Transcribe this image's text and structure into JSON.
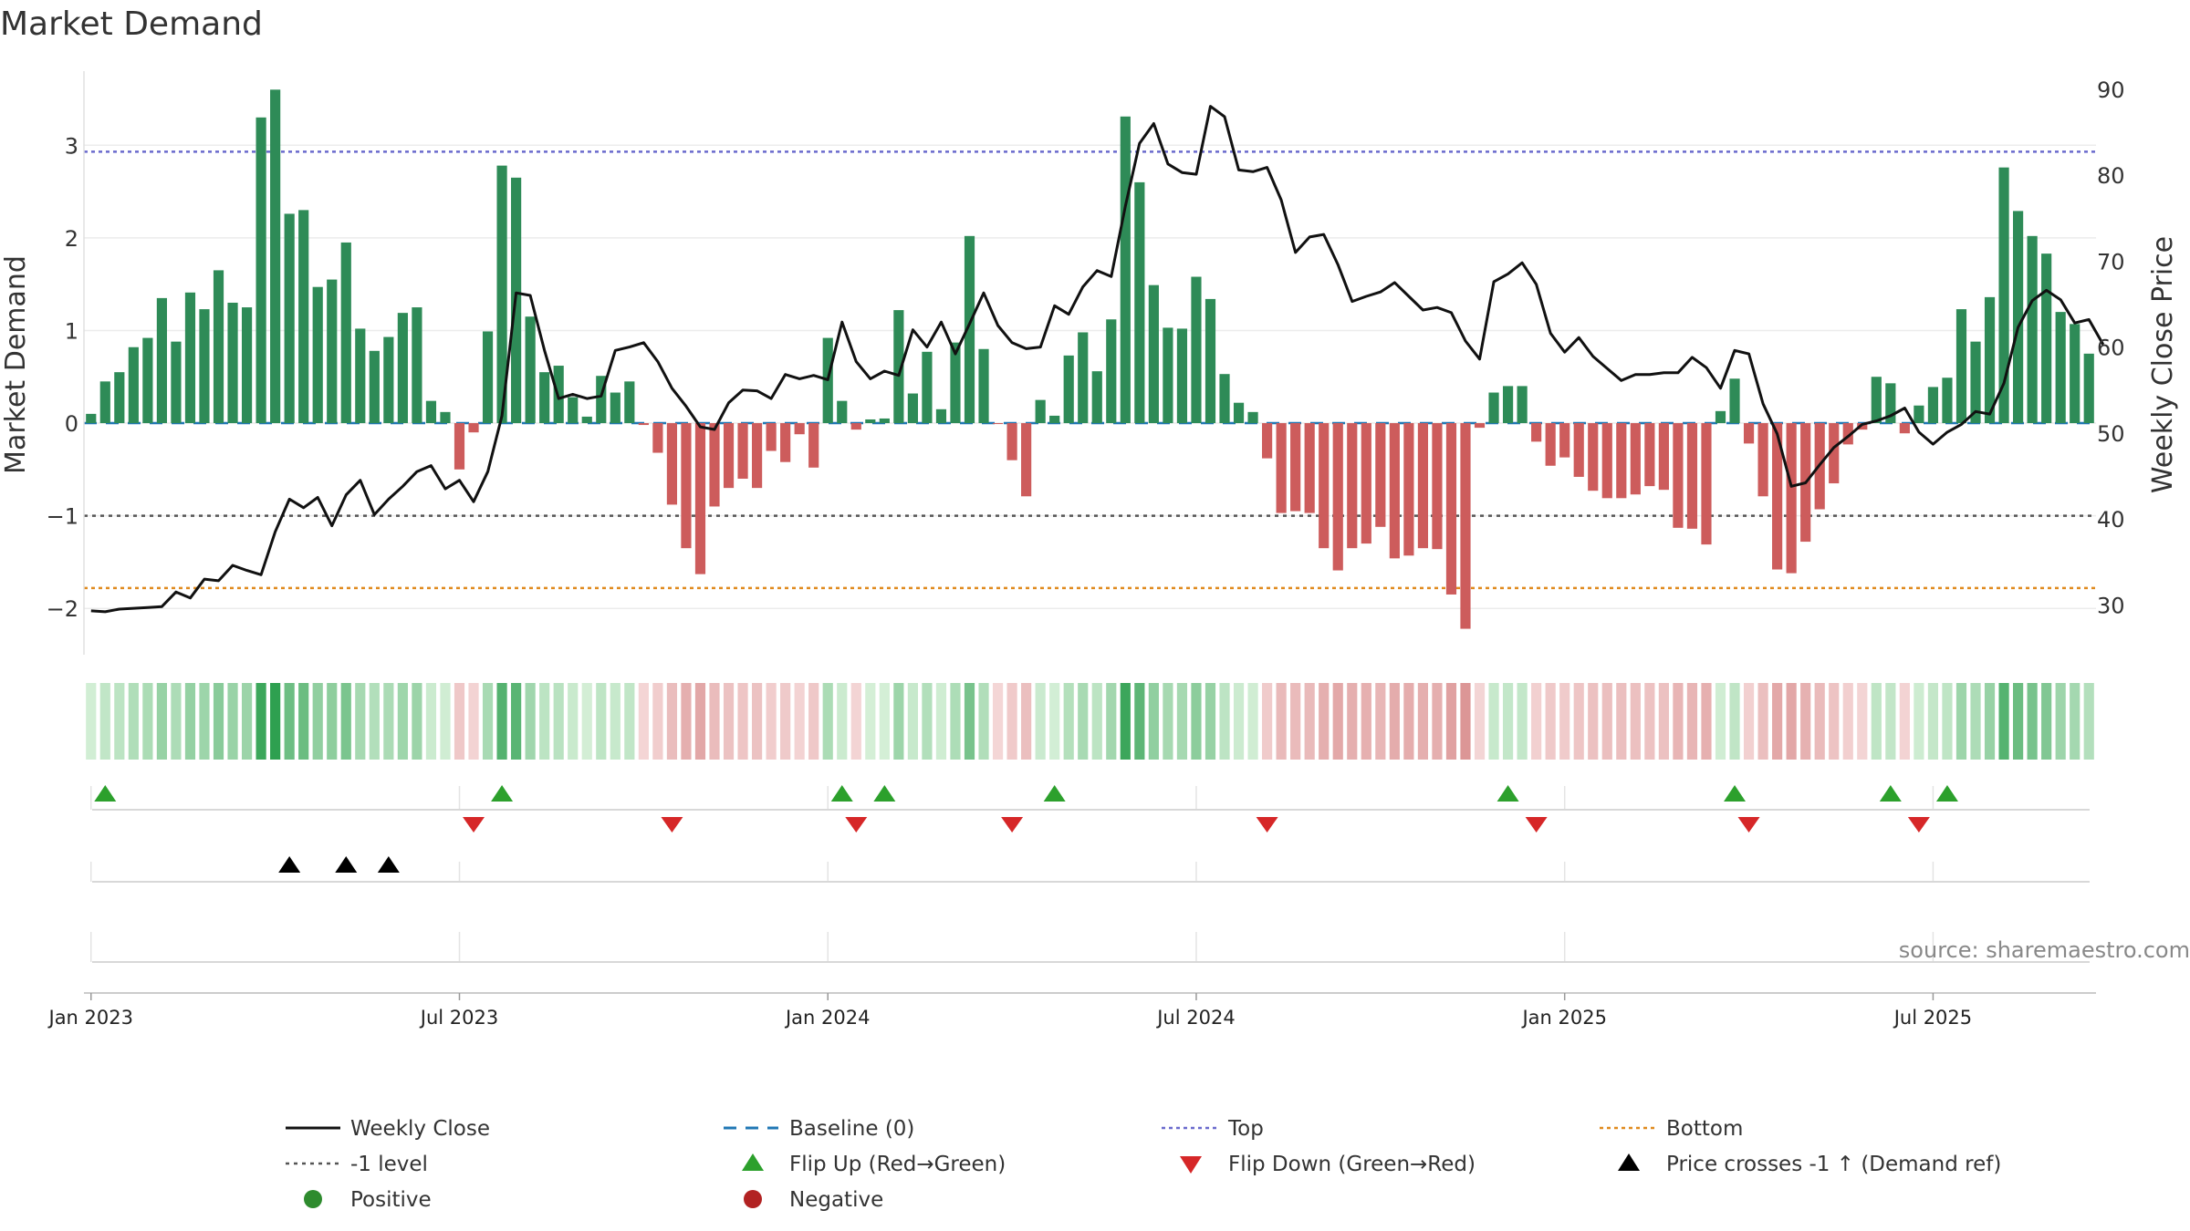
{
  "chart_data": {
    "type": "bar+line",
    "title": "Market Demand",
    "ylabel_left": "Market Demand",
    "ylabel_right": "Weekly Close Price",
    "ylim_left": [
      -2.5,
      3.8
    ],
    "ylim_right": [
      24.2,
      92.1
    ],
    "yticks_left": [
      -2,
      -1,
      0,
      1,
      2,
      3
    ],
    "yticks_right": [
      30,
      40,
      50,
      60,
      70,
      80,
      90
    ],
    "x_ticks": [
      {
        "week": 0,
        "label": "Jan 2023"
      },
      {
        "week": 26,
        "label": "Jul 2023"
      },
      {
        "week": 52,
        "label": "Jan 2024"
      },
      {
        "week": 78,
        "label": "Jul 2024"
      },
      {
        "week": 104,
        "label": "Jan 2025"
      },
      {
        "week": 130,
        "label": "Jul 2025"
      }
    ],
    "reference_lines": {
      "baseline": 0,
      "top": 2.93,
      "bottom": -1.78,
      "minus_one": -1
    },
    "demand": [
      0.1,
      0.45,
      0.55,
      0.82,
      0.92,
      1.35,
      0.88,
      1.41,
      1.23,
      1.65,
      1.3,
      1.25,
      3.3,
      3.6,
      2.26,
      2.3,
      1.47,
      1.55,
      1.95,
      1.02,
      0.78,
      0.93,
      1.19,
      1.25,
      0.24,
      0.12,
      -0.5,
      -0.1,
      0.99,
      2.78,
      2.65,
      1.15,
      0.55,
      0.62,
      0.28,
      0.07,
      0.51,
      0.33,
      0.45,
      -0.02,
      -0.32,
      -0.88,
      -1.35,
      -1.63,
      -0.9,
      -0.7,
      -0.6,
      -0.7,
      -0.3,
      -0.42,
      -0.12,
      -0.48,
      0.92,
      0.24,
      -0.07,
      0.04,
      0.05,
      1.22,
      0.32,
      0.77,
      0.15,
      0.87,
      2.02,
      0.8,
      -0.01,
      -0.4,
      -0.79,
      0.25,
      0.08,
      0.73,
      0.98,
      0.56,
      1.12,
      3.31,
      2.6,
      1.49,
      1.03,
      1.02,
      1.58,
      1.34,
      0.53,
      0.22,
      0.12,
      -0.38,
      -0.97,
      -0.95,
      -0.97,
      -1.35,
      -1.59,
      -1.35,
      -1.3,
      -1.12,
      -1.46,
      -1.43,
      -1.35,
      -1.36,
      -1.85,
      -2.22,
      -0.05,
      0.33,
      0.4,
      0.4,
      -0.2,
      -0.46,
      -0.37,
      -0.58,
      -0.73,
      -0.81,
      -0.81,
      -0.77,
      -0.68,
      -0.72,
      -1.13,
      -1.14,
      -1.31,
      0.13,
      0.48,
      -0.22,
      -0.79,
      -1.58,
      -1.62,
      -1.28,
      -0.93,
      -0.65,
      -0.23,
      -0.07,
      0.5,
      0.43,
      -0.11,
      0.19,
      0.39,
      0.49,
      1.23,
      0.88,
      1.36,
      2.76,
      2.29,
      2.02,
      1.83,
      1.2,
      1.07,
      0.75
    ],
    "weekly_close": [
      29.3,
      29.2,
      29.5,
      29.6,
      29.7,
      29.8,
      31.5,
      30.8,
      33.0,
      32.8,
      34.6,
      34.0,
      33.5,
      38.5,
      42.3,
      41.3,
      42.5,
      39.2,
      42.8,
      44.5,
      40.5,
      42.3,
      43.8,
      45.5,
      46.2,
      43.5,
      44.5,
      42.0,
      45.5,
      52.0,
      66.3,
      66.0,
      59.6,
      54.0,
      54.5,
      54.0,
      54.3,
      59.6,
      60.0,
      60.5,
      58.3,
      55.2,
      53.1,
      50.7,
      50.4,
      53.5,
      55.0,
      54.9,
      54.0,
      56.8,
      56.3,
      56.7,
      56.2,
      62.9,
      58.3,
      56.3,
      57.2,
      56.7,
      62.0,
      60.0,
      62.9,
      59.2,
      62.7,
      66.3,
      62.5,
      60.5,
      59.8,
      60.0,
      64.8,
      63.8,
      67.0,
      68.9,
      68.2,
      76.4,
      83.7,
      86.0,
      81.3,
      80.3,
      80.1,
      88.0,
      86.8,
      80.6,
      80.4,
      80.9,
      77.1,
      71.0,
      72.8,
      73.1,
      69.6,
      65.3,
      65.9,
      66.4,
      67.5,
      65.9,
      64.3,
      64.6,
      64.0,
      60.7,
      58.6,
      67.6,
      68.5,
      69.8,
      67.3,
      61.6,
      59.4,
      61.1,
      58.9,
      57.5,
      56.1,
      56.8,
      56.8,
      57.0,
      57.0,
      58.8,
      57.6,
      55.2,
      59.6,
      59.2,
      53.4,
      49.9,
      43.8,
      44.2,
      46.3,
      48.3,
      49.6,
      51.0,
      51.4,
      52.0,
      52.9,
      50.1,
      48.7,
      50.1,
      51.0,
      52.5,
      52.2,
      55.8,
      62.3,
      65.4,
      66.6,
      65.5,
      62.8,
      63.2,
      60.3
    ],
    "flip_up_weeks": [
      1,
      29,
      53,
      56,
      68,
      100,
      116,
      127,
      131
    ],
    "flip_down_weeks": [
      27,
      41,
      54,
      65,
      83,
      102,
      117,
      129
    ],
    "price_cross_weeks": [
      14,
      18,
      21
    ],
    "legend": [
      "Weekly Close",
      "Baseline (0)",
      "Top",
      "Bottom",
      "-1 level",
      "Flip Up (Red→Green)",
      "Flip Down (Green→Red)",
      "Price crosses -1 ↑ (Demand ref)",
      "Positive",
      "Negative"
    ],
    "source": "source: sharemaestro.com"
  },
  "colors": {
    "positive_bar": "#2e8b57",
    "negative_bar": "#cd5c5c",
    "price_line": "#111111",
    "baseline": "#1f77b4",
    "top": "#6a6acd",
    "bottom": "#e08a1e",
    "minus_one": "#555555",
    "flip_up": "#2ca02c",
    "flip_down": "#d62728",
    "positive_dot": "#2e8b2e",
    "negative_dot": "#b22222"
  }
}
